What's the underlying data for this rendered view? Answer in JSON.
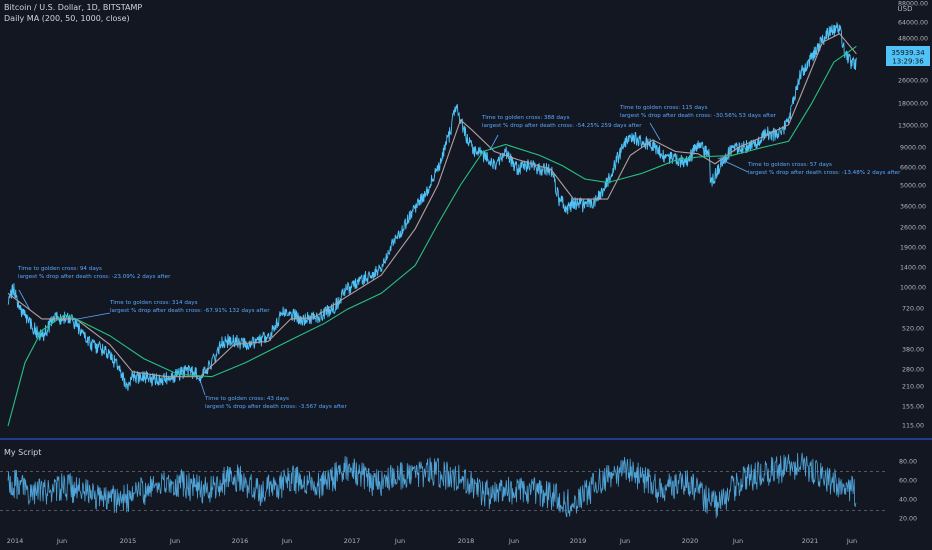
{
  "header": {
    "symbol_line": "Bitcoin / U.S. Dollar, 1D, BITSTAMP",
    "indicator_line": "Daily MA (200, 50, 1000, close)",
    "currency": "USD"
  },
  "price_badge": {
    "price": "35939.34",
    "countdown": "13:29:36"
  },
  "oscillator": {
    "title": "My Script"
  },
  "colors": {
    "background": "#131722",
    "price": "#4fc3f7",
    "ma_fast": "#b2a0a0",
    "ma_slow": "#26c281",
    "osc_line": "#4fa3d6",
    "osc_hot": "#e04040",
    "annotation": "#5aa9ff",
    "separator": "#2962ff"
  },
  "chart_data": [
    {
      "type": "line",
      "log_scale": true,
      "grid": false,
      "ylim": [
        100,
        88000
      ],
      "x_labels": [
        "2014",
        "Jun",
        "2015",
        "Jun",
        "2016",
        "Jun",
        "2017",
        "Jun",
        "2018",
        "Jun",
        "2019",
        "Jun",
        "2020",
        "Jun",
        "2021",
        "Jun"
      ],
      "y_ticks": [
        "88000.00",
        "64000.00",
        "48000.00",
        "26000.00",
        "18000.00",
        "13000.00",
        "9000.00",
        "6600.00",
        "5000.00",
        "3600.00",
        "2600.00",
        "1900.00",
        "1400.00",
        "1000.00",
        "720.00",
        "520.00",
        "380.00",
        "280.00",
        "210.00",
        "155.00",
        "115.00"
      ],
      "series": [
        {
          "key": "price",
          "x": [
            2014.0,
            2014.05,
            2014.1,
            2014.2,
            2014.3,
            2014.4,
            2014.5,
            2014.6,
            2014.7,
            2014.8,
            2014.9,
            2015.0,
            2015.05,
            2015.1,
            2015.2,
            2015.3,
            2015.4,
            2015.5,
            2015.6,
            2015.7,
            2015.8,
            2015.9,
            2016.0,
            2016.1,
            2016.2,
            2016.3,
            2016.45,
            2016.5,
            2016.6,
            2016.7,
            2016.8,
            2016.9,
            2017.0,
            2017.05,
            2017.1,
            2017.2,
            2017.3,
            2017.4,
            2017.5,
            2017.6,
            2017.7,
            2017.8,
            2017.9,
            2017.96,
            2018.0,
            2018.05,
            2018.1,
            2018.2,
            2018.3,
            2018.4,
            2018.5,
            2018.6,
            2018.7,
            2018.8,
            2018.87,
            2018.95,
            2019.0,
            2019.1,
            2019.2,
            2019.3,
            2019.4,
            2019.5,
            2019.6,
            2019.7,
            2019.8,
            2019.9,
            2020.0,
            2020.1,
            2020.2,
            2020.21,
            2020.3,
            2020.4,
            2020.5,
            2020.6,
            2020.7,
            2020.8,
            2020.9,
            2021.0,
            2021.1,
            2021.2,
            2021.28,
            2021.35,
            2021.4,
            2021.45,
            2021.5
          ],
          "y": [
            800,
            1000,
            700,
            550,
            450,
            600,
            620,
            560,
            420,
            380,
            340,
            260,
            200,
            240,
            240,
            230,
            235,
            250,
            270,
            240,
            300,
            420,
            430,
            400,
            420,
            450,
            700,
            650,
            600,
            610,
            650,
            750,
            980,
            1000,
            1100,
            1200,
            1300,
            2000,
            2600,
            3500,
            4500,
            6500,
            11000,
            18000,
            14000,
            11000,
            9000,
            8000,
            7000,
            8500,
            6500,
            7000,
            6500,
            6500,
            4000,
            3500,
            3800,
            3600,
            3900,
            5300,
            8000,
            11000,
            10000,
            9500,
            8000,
            7500,
            7200,
            9500,
            8000,
            5000,
            7000,
            8900,
            9200,
            9500,
            11500,
            11000,
            13500,
            29000,
            37000,
            50000,
            58000,
            60000,
            40000,
            35000,
            34000
          ]
        },
        {
          "key": "ma_fast",
          "x": [
            2014.0,
            2014.3,
            2014.6,
            2014.9,
            2015.1,
            2015.4,
            2015.7,
            2016.0,
            2016.3,
            2016.5,
            2016.7,
            2017.0,
            2017.3,
            2017.6,
            2017.8,
            2018.0,
            2018.1,
            2018.3,
            2018.5,
            2018.8,
            2019.0,
            2019.3,
            2019.5,
            2019.7,
            2019.9,
            2020.1,
            2020.25,
            2020.45,
            2020.7,
            2020.9,
            2021.0,
            2021.2,
            2021.35,
            2021.5
          ],
          "y": [
            900,
            600,
            600,
            400,
            260,
            240,
            240,
            400,
            420,
            600,
            610,
            860,
            1200,
            2500,
            5000,
            14000,
            12000,
            8500,
            7500,
            6400,
            4000,
            4000,
            8000,
            10200,
            8500,
            8200,
            7000,
            9000,
            11000,
            13000,
            20000,
            48000,
            55000,
            40000
          ]
        },
        {
          "key": "ma_slow",
          "x": [
            2014.0,
            2014.15,
            2014.3,
            2014.5,
            2014.6,
            2014.9,
            2015.2,
            2015.5,
            2015.8,
            2016.1,
            2016.5,
            2016.8,
            2017.0,
            2017.3,
            2017.6,
            2017.8,
            2018.0,
            2018.2,
            2018.4,
            2018.7,
            2018.9,
            2019.1,
            2019.3,
            2019.6,
            2019.9,
            2020.1,
            2020.4,
            2020.7,
            2020.9,
            2021.1,
            2021.3,
            2021.5
          ],
          "y": [
            110,
            300,
            500,
            640,
            600,
            460,
            320,
            250,
            240,
            300,
            430,
            560,
            700,
            900,
            1400,
            2700,
            5000,
            8500,
            9500,
            8000,
            6800,
            5500,
            5200,
            6000,
            7400,
            7800,
            8000,
            9200,
            10000,
            18000,
            35000,
            45000
          ]
        }
      ],
      "annotations": [
        {
          "text": [
            "Time to golden cross: 94 days",
            "largest % drop after death cross: -23.09% 2 days after"
          ]
        },
        {
          "text": [
            "Time to golden cross: 314 days",
            "largest % drop after death cross: -67.91% 132 days after"
          ]
        },
        {
          "text": [
            "Time to golden cross: 43 days",
            "largest % drop after death cross: -3.567 days after"
          ]
        },
        {
          "text": [
            "Time to golden cross: 388 days",
            "largest % drop after death cross: -54.25% 259 days after"
          ]
        },
        {
          "text": [
            "Time to golden cross: 115 days",
            "largest % drop after death cross: -30.56% 53 days after"
          ]
        },
        {
          "text": [
            "Time to golden cross: 57 days",
            "largest % drop after death cross: -13.48% 2 days after"
          ]
        }
      ]
    },
    {
      "type": "line",
      "grid": false,
      "ylim": [
        10,
        100
      ],
      "levels": [
        70,
        30
      ],
      "y_ticks": [
        "80.00",
        "60.00",
        "40.00",
        "20.00"
      ],
      "series": [
        {
          "key": "osc",
          "x": [
            2014.0,
            2014.25,
            2014.5,
            2014.75,
            2015.0,
            2015.25,
            2015.5,
            2015.75,
            2016.0,
            2016.25,
            2016.5,
            2016.75,
            2017.0,
            2017.25,
            2017.5,
            2017.75,
            2018.0,
            2018.25,
            2018.5,
            2018.75,
            2019.0,
            2019.25,
            2019.5,
            2019.75,
            2020.0,
            2020.25,
            2020.5,
            2020.75,
            2021.0,
            2021.25,
            2021.5
          ],
          "y": [
            60,
            48,
            55,
            45,
            40,
            52,
            58,
            50,
            65,
            48,
            62,
            55,
            72,
            58,
            66,
            70,
            62,
            45,
            52,
            48,
            35,
            62,
            72,
            50,
            58,
            35,
            62,
            70,
            75,
            62,
            48
          ]
        }
      ]
    }
  ]
}
